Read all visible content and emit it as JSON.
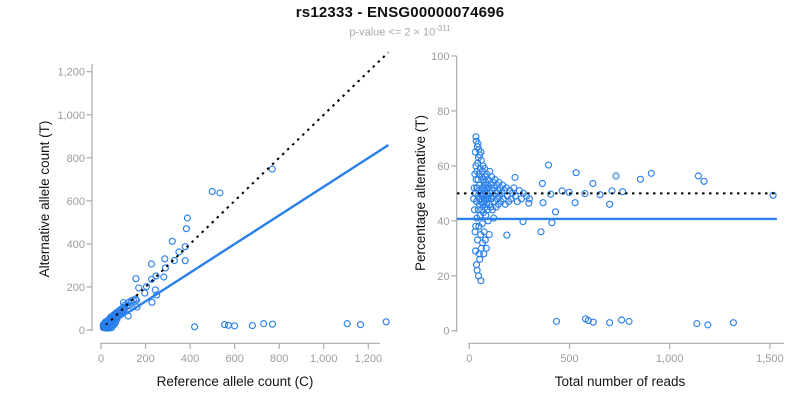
{
  "header": {
    "title": "rs12333 - ENSG00000074696",
    "subtitle_base": "p-value <= 2 × 10",
    "subtitle_exponent": "-311"
  },
  "colors": {
    "point_blue": "#2B80EB",
    "fit_line_blue": "#2B80EB",
    "reference_line_black": "#000000",
    "axis_gray": "#ababab",
    "tick_label_gray": "#9c9c9c",
    "axis_title_color": "#141414",
    "subtitle_gray": "#a8a8a8"
  },
  "chart_data": {
    "type": "scatter",
    "title": "rs12333 - ENSG00000074696",
    "subtitle": "p-value <= 2 × 10^-311",
    "grid": false,
    "legend": "none",
    "note": "Both panels plot the same samples. Each sample is [total_reads, percent_alternative]. Left panel: x = reads*(100-pct)/100 (reference count C), y = reads*pct/100 (alternative count T). Right panel: x = reads, y = pct.",
    "samples_reads_pct": [
      [
        22,
        48
      ],
      [
        24,
        52
      ],
      [
        26,
        44
      ],
      [
        28,
        57
      ],
      [
        29,
        36
      ],
      [
        30,
        65
      ],
      [
        30,
        50
      ],
      [
        31,
        29
      ],
      [
        32,
        38
      ],
      [
        33,
        70.6
      ],
      [
        33,
        60
      ],
      [
        34,
        55
      ],
      [
        35,
        69
      ],
      [
        36,
        47
      ],
      [
        36,
        24
      ],
      [
        37,
        52
      ],
      [
        38,
        58
      ],
      [
        38,
        41
      ],
      [
        39,
        22
      ],
      [
        40,
        67
      ],
      [
        40,
        52
      ],
      [
        41,
        33
      ],
      [
        42,
        61
      ],
      [
        43,
        49
      ],
      [
        44,
        68
      ],
      [
        44,
        55
      ],
      [
        45,
        44
      ],
      [
        46,
        63
      ],
      [
        46,
        20
      ],
      [
        47,
        51
      ],
      [
        48,
        66
      ],
      [
        48,
        38
      ],
      [
        49,
        57
      ],
      [
        50,
        46
      ],
      [
        50,
        28
      ],
      [
        51,
        53
      ],
      [
        52,
        64
      ],
      [
        52,
        26
      ],
      [
        53,
        48
      ],
      [
        54,
        42
      ],
      [
        55,
        59
      ],
      [
        56,
        50
      ],
      [
        57,
        35
      ],
      [
        58,
        18.2
      ],
      [
        58,
        65
      ],
      [
        59,
        47
      ],
      [
        60,
        62
      ],
      [
        60,
        30
      ],
      [
        61,
        51
      ],
      [
        62,
        44
      ],
      [
        63,
        56
      ],
      [
        64,
        49
      ],
      [
        65,
        39
      ],
      [
        66,
        58
      ],
      [
        66,
        32
      ],
      [
        67,
        52
      ],
      [
        68,
        46
      ],
      [
        69,
        60
      ],
      [
        70,
        50
      ],
      [
        71,
        43
      ],
      [
        72,
        55
      ],
      [
        72,
        28
      ],
      [
        73,
        48
      ],
      [
        74,
        36
      ],
      [
        75,
        53
      ],
      [
        76,
        47
      ],
      [
        77,
        59
      ],
      [
        78,
        51
      ],
      [
        79,
        45
      ],
      [
        80,
        56
      ],
      [
        80,
        33
      ],
      [
        81,
        49
      ],
      [
        82,
        42
      ],
      [
        83,
        54
      ],
      [
        84,
        48
      ],
      [
        85,
        30
      ],
      [
        86,
        52
      ],
      [
        87,
        46
      ],
      [
        88,
        57
      ],
      [
        89,
        50
      ],
      [
        90,
        44
      ],
      [
        91,
        53
      ],
      [
        92,
        48
      ],
      [
        94,
        40
      ],
      [
        95,
        55
      ],
      [
        96,
        49
      ],
      [
        98,
        52
      ],
      [
        100,
        46
      ],
      [
        100,
        35
      ],
      [
        102,
        58
      ],
      [
        104,
        50
      ],
      [
        106,
        45
      ],
      [
        108,
        53
      ],
      [
        110,
        48
      ],
      [
        112,
        56
      ],
      [
        114,
        51
      ],
      [
        116,
        44
      ],
      [
        118,
        54
      ],
      [
        120,
        49
      ],
      [
        122,
        41
      ],
      [
        124,
        52
      ],
      [
        126,
        47
      ],
      [
        128,
        55
      ],
      [
        130,
        50
      ],
      [
        133,
        45
      ],
      [
        136,
        53
      ],
      [
        139,
        48
      ],
      [
        142,
        51
      ],
      [
        145,
        46
      ],
      [
        148,
        54
      ],
      [
        151,
        49
      ],
      [
        154,
        52
      ],
      [
        158,
        47
      ],
      [
        162,
        50
      ],
      [
        166,
        53
      ],
      [
        170,
        48
      ],
      [
        175,
        51
      ],
      [
        180,
        46
      ],
      [
        185,
        52
      ],
      [
        190,
        49
      ],
      [
        196,
        47
      ],
      [
        202,
        51
      ],
      [
        208,
        48
      ],
      [
        215,
        50
      ],
      [
        222,
        52
      ],
      [
        230,
        49
      ],
      [
        240,
        47
      ],
      [
        250,
        51
      ],
      [
        260,
        48
      ],
      [
        270,
        50
      ],
      [
        285,
        49
      ],
      [
        300,
        48
      ],
      [
        187,
        34.8
      ],
      [
        228,
        55.8
      ],
      [
        268,
        39.7
      ],
      [
        297,
        46.4
      ],
      [
        358,
        36
      ],
      [
        365,
        53.6
      ],
      [
        368,
        46.6
      ],
      [
        395,
        60.3
      ],
      [
        406,
        49.7
      ],
      [
        412,
        39.3
      ],
      [
        430,
        43.3
      ],
      [
        463,
        50.9
      ],
      [
        498,
        50.4
      ],
      [
        528,
        46.6
      ],
      [
        533,
        57.5
      ],
      [
        577,
        49.9
      ],
      [
        617,
        53.6
      ],
      [
        652,
        49.5
      ],
      [
        700,
        46
      ],
      [
        712,
        50.9
      ],
      [
        732,
        56.3
      ],
      [
        765,
        50.6
      ],
      [
        854,
        55.1
      ],
      [
        908,
        57.3
      ],
      [
        1143,
        56.3
      ],
      [
        1171,
        54.4
      ],
      [
        1516,
        49.3
      ],
      [
        435,
        3.4
      ],
      [
        580,
        4.3
      ],
      [
        594,
        3.7
      ],
      [
        619,
        3.1
      ],
      [
        700,
        2.9
      ],
      [
        760,
        3.9
      ],
      [
        797,
        3.4
      ],
      [
        1135,
        2.6
      ],
      [
        1190,
        2.1
      ],
      [
        1318,
        2.9
      ]
    ],
    "panels": [
      {
        "id": "left",
        "xlabel": "Reference allele count (C)",
        "ylabel": "Alternative allele count (T)",
        "xlim": [
          0,
          1290
        ],
        "ylim": [
          0,
          1290
        ],
        "xticks": [
          {
            "v": 0,
            "label": "0"
          },
          {
            "v": 200,
            "label": "200"
          },
          {
            "v": 400,
            "label": "400"
          },
          {
            "v": 600,
            "label": "600"
          },
          {
            "v": 800,
            "label": "800"
          },
          {
            "v": 1000,
            "label": "1,000"
          },
          {
            "v": 1200,
            "label": "1,200"
          }
        ],
        "yticks": [
          {
            "v": 0,
            "label": "0"
          },
          {
            "v": 200,
            "label": "200"
          },
          {
            "v": 400,
            "label": "400"
          },
          {
            "v": 600,
            "label": "600"
          },
          {
            "v": 800,
            "label": "800"
          },
          {
            "v": 1000,
            "label": "1,000"
          },
          {
            "v": 1200,
            "label": "1,200"
          }
        ],
        "lines": [
          {
            "name": "identity-line",
            "type": "slope",
            "slope": 1,
            "intercept": 0,
            "style": "dotted",
            "color": "reference_line_black"
          },
          {
            "name": "fit-line",
            "type": "slope",
            "slope": 0.666,
            "intercept": 0,
            "style": "solid",
            "color": "fit_line_blue"
          }
        ]
      },
      {
        "id": "right",
        "xlabel": "Total number of reads",
        "ylabel": "Percentage alternative (T)",
        "xlim": [
          0,
          1580
        ],
        "ylim": [
          0,
          100
        ],
        "xticks": [
          {
            "v": 0,
            "label": "0"
          },
          {
            "v": 500,
            "label": "500"
          },
          {
            "v": 1000,
            "label": "1,000"
          },
          {
            "v": 1500,
            "label": "1,500"
          }
        ],
        "yticks": [
          {
            "v": 0,
            "label": "0"
          },
          {
            "v": 20,
            "label": "20"
          },
          {
            "v": 40,
            "label": "40"
          },
          {
            "v": 60,
            "label": "60"
          },
          {
            "v": 80,
            "label": "80"
          },
          {
            "v": 100,
            "label": "100"
          }
        ],
        "lines": [
          {
            "name": "expected-50pct-line",
            "type": "hline",
            "y": 50,
            "style": "dotted",
            "color": "reference_line_black"
          },
          {
            "name": "fit-line",
            "type": "hline",
            "y": 40.7,
            "style": "solid",
            "color": "fit_line_blue"
          }
        ]
      }
    ]
  }
}
